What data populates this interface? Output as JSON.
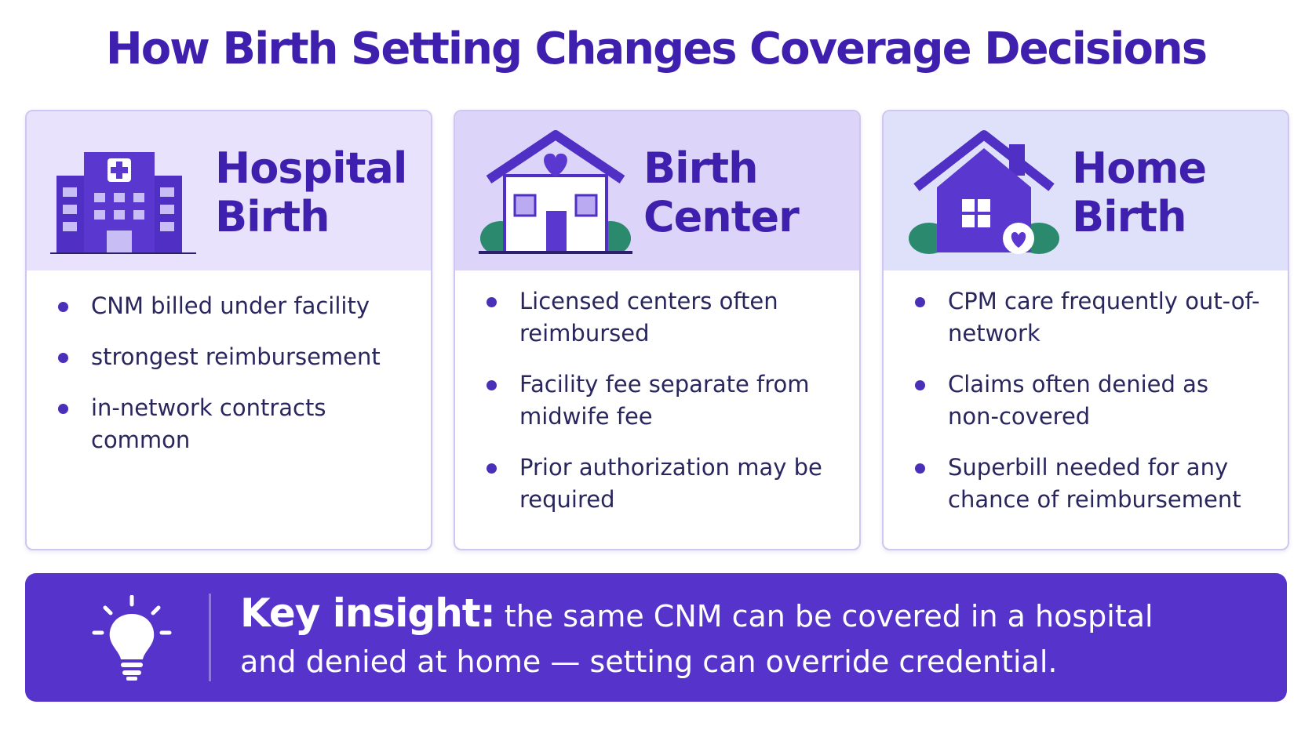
{
  "title": "How Birth Setting Changes Coverage Decisions",
  "cards": [
    {
      "title": "Hospital Birth",
      "bullets": [
        "CNM billed under facility",
        "strongest reimbursement",
        "in-network contracts common"
      ]
    },
    {
      "title": "Birth Center",
      "bullets": [
        "Licensed centers often reimbursed",
        "Facility fee separate from midwife fee",
        "Prior authorization may be required"
      ]
    },
    {
      "title": "Home Birth",
      "bullets": [
        "CPM care frequently out-of-network",
        "Claims often denied as non-covered",
        "Superbill needed for any chance of reimbursement"
      ]
    }
  ],
  "key_insight": {
    "label": "Key insight:",
    "text": "the same CNM can be covered in a hospital and denied at home — setting can override credential."
  }
}
